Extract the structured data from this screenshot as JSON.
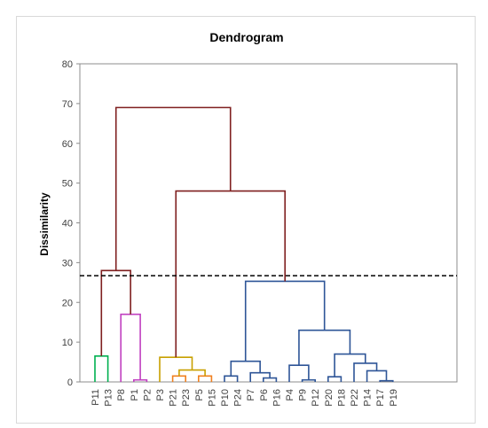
{
  "chart_data": {
    "type": "dendrogram",
    "title": "Dendrogram",
    "ylabel": "Dissimilarity",
    "xlabel": "",
    "ylim": [
      0,
      80
    ],
    "yticks": [
      0,
      10,
      20,
      30,
      40,
      50,
      60,
      70,
      80
    ],
    "cut_line": 26.7,
    "leaves": [
      "P11",
      "P13",
      "P8",
      "P1",
      "P2",
      "P3",
      "P21",
      "P23",
      "P5",
      "P15",
      "P10",
      "P24",
      "P7",
      "P6",
      "P16",
      "P4",
      "P9",
      "P12",
      "P20",
      "P18",
      "P22",
      "P14",
      "P17",
      "P19"
    ],
    "colors": {
      "green": "#00B050",
      "pink": "#C040C0",
      "gold": "#C8A000",
      "orange": "#F08020",
      "blue": "#2E5597",
      "brown": "#7F1F1F"
    },
    "merges": [
      {
        "id": "A",
        "left": "P11",
        "right": "P13",
        "height": 6.5,
        "color": "green"
      },
      {
        "id": "B",
        "left": "P1",
        "right": "P2",
        "height": 0.5,
        "color": "pink"
      },
      {
        "id": "C",
        "left": "P8",
        "right": "B",
        "height": 17,
        "color": "pink"
      },
      {
        "id": "D",
        "left": "A",
        "right": "C",
        "height": 28,
        "color": "brown"
      },
      {
        "id": "E",
        "left": "P21",
        "right": "P23",
        "height": 1.5,
        "color": "orange"
      },
      {
        "id": "F",
        "left": "P5",
        "right": "P15",
        "height": 1.5,
        "color": "orange"
      },
      {
        "id": "G",
        "left": "E",
        "right": "F",
        "height": 3,
        "color": "gold"
      },
      {
        "id": "H",
        "left": "P3",
        "right": "G",
        "height": 6.2,
        "color": "gold"
      },
      {
        "id": "I",
        "left": "P10",
        "right": "P24",
        "height": 1.5,
        "color": "blue"
      },
      {
        "id": "J",
        "left": "P6",
        "right": "P16",
        "height": 1,
        "color": "blue"
      },
      {
        "id": "K",
        "left": "P7",
        "right": "J",
        "height": 2.3,
        "color": "blue"
      },
      {
        "id": "L",
        "left": "I",
        "right": "K",
        "height": 5.2,
        "color": "blue"
      },
      {
        "id": "M",
        "left": "P9",
        "right": "P12",
        "height": 0.5,
        "color": "blue"
      },
      {
        "id": "N",
        "left": "P4",
        "right": "M",
        "height": 4.2,
        "color": "blue"
      },
      {
        "id": "O",
        "left": "P20",
        "right": "P18",
        "height": 1.3,
        "color": "blue"
      },
      {
        "id": "P",
        "left": "P17",
        "right": "P19",
        "height": 0.3,
        "color": "blue"
      },
      {
        "id": "Q",
        "left": "P14",
        "right": "P",
        "height": 2.8,
        "color": "blue"
      },
      {
        "id": "R",
        "left": "P22",
        "right": "Q",
        "height": 4.7,
        "color": "blue"
      },
      {
        "id": "S",
        "left": "O",
        "right": "R",
        "height": 7,
        "color": "blue"
      },
      {
        "id": "T",
        "left": "N",
        "right": "S",
        "height": 13,
        "color": "blue"
      },
      {
        "id": "U",
        "left": "L",
        "right": "T",
        "height": 25.3,
        "color": "blue"
      },
      {
        "id": "V",
        "left": "H",
        "right": "U",
        "height": 48,
        "color": "brown"
      },
      {
        "id": "W",
        "left": "D",
        "right": "V",
        "height": 69,
        "color": "brown"
      }
    ]
  }
}
